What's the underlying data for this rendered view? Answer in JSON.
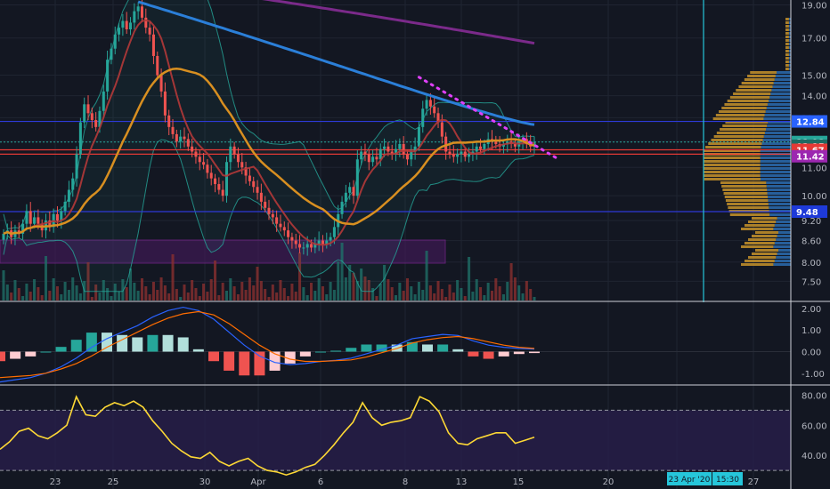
{
  "chart_data": [
    {
      "type": "candlestick",
      "pane": "price",
      "x_tick_labels": [
        "23",
        "25",
        "30",
        "Apr",
        "6",
        "8",
        "13",
        "15",
        "20",
        "27"
      ],
      "y_tick_labels": [
        "19.00",
        "17.00",
        "15.00",
        "14.00",
        "13.00",
        "12.00",
        "11.00",
        "10.00",
        "9.20",
        "8.60",
        "8.00",
        "7.50"
      ],
      "ylim": [
        7.2,
        19.2
      ],
      "y_scale": "log",
      "price_badges": [
        {
          "text": "12.84",
          "value": 12.84,
          "color": "#2962ff"
        },
        {
          "text": "11.98",
          "value": 11.98,
          "color": "#26a69a"
        },
        {
          "text": "02:15",
          "value": 11.83,
          "color": "#1e6b63"
        },
        {
          "text": "11.67",
          "value": 11.67,
          "color": "#e53935"
        },
        {
          "text": "11.42",
          "value": 11.42,
          "color": "#9c27b0"
        },
        {
          "text": "9.48",
          "value": 9.48,
          "color": "#1e3ad8"
        }
      ],
      "horizontal_lines": [
        {
          "value": 12.84,
          "color": "#2d3ad8"
        },
        {
          "value": 11.67,
          "color": "#e53935"
        },
        {
          "value": 11.5,
          "color": "#e53935"
        },
        {
          "value": 9.48,
          "color": "#2d3ad8"
        }
      ],
      "close_approx": [
        8.8,
        8.9,
        8.7,
        8.9,
        8.8,
        9.1,
        9.5,
        9.1,
        9.3,
        9.1,
        8.9,
        9.2,
        9.0,
        9.4,
        9.2,
        9.5,
        9.8,
        10.2,
        10.6,
        11.5,
        12.8,
        13.6,
        13.2,
        12.9,
        12.6,
        13.3,
        14.2,
        15.8,
        16.4,
        17.2,
        17.6,
        18.0,
        17.5,
        17.9,
        18.6,
        18.9,
        18.2,
        17.6,
        17.2,
        16.0,
        15.0,
        14.2,
        13.1,
        12.6,
        12.3,
        12.0,
        12.2,
        12.1,
        11.8,
        11.6,
        11.4,
        11.2,
        11.1,
        10.8,
        10.6,
        10.4,
        10.2,
        10.0,
        11.2,
        11.8,
        11.5,
        11.2,
        11.0,
        10.7,
        10.5,
        10.3,
        10.1,
        9.8,
        9.6,
        9.4,
        9.3,
        9.1,
        9.0,
        8.9,
        8.7,
        8.6,
        8.5,
        8.4,
        8.4,
        8.5,
        8.4,
        8.5,
        8.6,
        8.5,
        8.6,
        8.7,
        9.0,
        9.4,
        9.8,
        10.1,
        10.3,
        10.0,
        11.3,
        11.6,
        11.5,
        11.2,
        11.4,
        11.3,
        11.7,
        11.8,
        11.6,
        11.5,
        11.7,
        11.9,
        11.5,
        11.3,
        11.6,
        11.8,
        12.6,
        13.4,
        13.8,
        13.5,
        13.2,
        12.8,
        12.2,
        11.6,
        11.5,
        11.4,
        11.5,
        11.6,
        11.4,
        11.5,
        11.6,
        11.8,
        11.7,
        11.9,
        12.1,
        12.0,
        11.9,
        11.8,
        11.9,
        12.0,
        11.9,
        11.8,
        12.0,
        12.1,
        11.9,
        11.8,
        11.98
      ],
      "overlays": [
        "long moving average (blue)",
        "long moving average (purple)",
        "moving average (orange)",
        "moving average (red)",
        "Bollinger bands (teal)"
      ],
      "volume_profile": true,
      "shaded_zone": {
        "y_range": [
          8.15,
          8.8
        ],
        "color": "#7b1fa2"
      }
    },
    {
      "type": "line",
      "pane": "macd",
      "y_tick_labels": [
        "2.00",
        "1.00",
        "0.00",
        "-1.00"
      ],
      "ylim": [
        -1.5,
        2.2
      ],
      "series": [
        {
          "values": [
            -1.4,
            -1.3,
            -1.2,
            -1.0,
            -0.7,
            -0.3,
            0.2,
            0.6,
            0.9,
            1.2,
            1.6,
            1.9,
            2.05,
            1.9,
            1.5,
            0.9,
            0.3,
            -0.2,
            -0.5,
            -0.6,
            -0.55,
            -0.45,
            -0.4,
            -0.3,
            -0.1,
            0.1,
            0.3,
            0.6,
            0.7,
            0.8,
            0.75,
            0.5,
            0.3,
            0.2,
            0.15,
            0.12
          ]
        },
        {
          "values": [
            -1.2,
            -1.15,
            -1.1,
            -1.0,
            -0.8,
            -0.55,
            -0.2,
            0.2,
            0.55,
            0.9,
            1.25,
            1.55,
            1.75,
            1.85,
            1.7,
            1.3,
            0.8,
            0.3,
            -0.1,
            -0.35,
            -0.45,
            -0.45,
            -0.42,
            -0.38,
            -0.25,
            -0.05,
            0.15,
            0.4,
            0.55,
            0.65,
            0.7,
            0.6,
            0.45,
            0.3,
            0.2,
            0.15
          ]
        }
      ]
    },
    {
      "type": "line",
      "pane": "rsi",
      "y_tick_labels": [
        "80.00",
        "60.00",
        "40.00"
      ],
      "ylim": [
        20,
        85
      ],
      "band": [
        30,
        70
      ],
      "values": [
        44,
        49,
        56,
        58,
        53,
        51,
        55,
        60,
        79,
        67,
        66,
        72,
        75,
        73,
        76,
        72,
        63,
        56,
        48,
        43,
        39,
        38,
        42,
        36,
        33,
        36,
        38,
        33,
        30,
        29,
        27,
        29,
        32,
        34,
        40,
        47,
        55,
        62,
        75,
        65,
        60,
        62,
        63,
        65,
        79,
        76,
        69,
        55,
        48,
        47,
        51,
        53,
        55,
        55,
        48,
        50,
        52
      ]
    }
  ],
  "time_axis_badges": {
    "date": "23 Apr '20",
    "time": "15:30"
  },
  "colors": {
    "up": "#26a69a",
    "down": "#ef5350",
    "rsi": "#fdd835",
    "macd": "#2962ff",
    "signal": "#ff6d00",
    "text": "#b2b5be"
  }
}
